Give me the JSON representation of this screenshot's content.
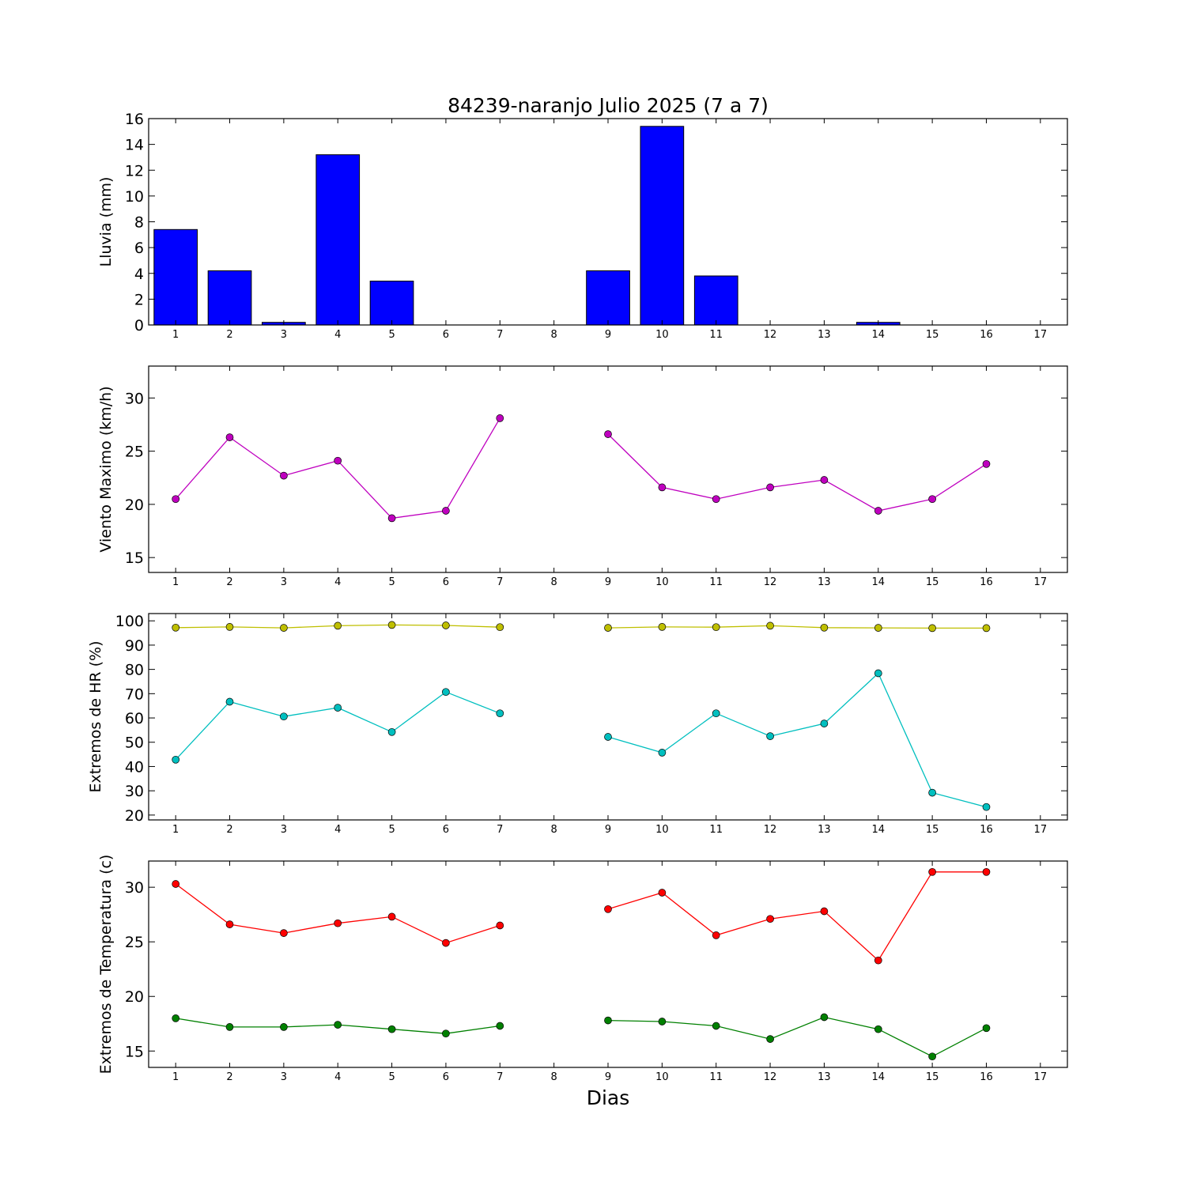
{
  "title": "84239-naranjo Julio 2025  (7 a 7)",
  "xlabel": "Dias",
  "chart_data": [
    {
      "type": "bar",
      "ylabel": "Lluvia (mm)",
      "xlim": [
        0.5,
        17.5
      ],
      "ylim": [
        0,
        16
      ],
      "yticks": [
        0,
        2,
        4,
        6,
        8,
        10,
        12,
        14,
        16
      ],
      "xticks": [
        1,
        2,
        3,
        4,
        5,
        6,
        7,
        8,
        9,
        10,
        11,
        12,
        13,
        14,
        15,
        16,
        17
      ],
      "series": [
        {
          "color": "#0000ff",
          "x": [
            1,
            2,
            3,
            4,
            5,
            6,
            7,
            9,
            10,
            11,
            12,
            13,
            14,
            15,
            16
          ],
          "values": [
            7.4,
            4.2,
            0.2,
            13.2,
            3.4,
            0,
            0,
            4.2,
            15.4,
            3.8,
            0,
            0,
            0.2,
            0,
            0
          ]
        }
      ]
    },
    {
      "type": "line",
      "ylabel": "Viento Maximo (km/h)",
      "xlim": [
        0.5,
        17.5
      ],
      "ylim": [
        13.6,
        33.0
      ],
      "yticks": [
        15,
        20,
        25,
        30
      ],
      "xticks": [
        1,
        2,
        3,
        4,
        5,
        6,
        7,
        8,
        9,
        10,
        11,
        12,
        13,
        14,
        15,
        16,
        17
      ],
      "series": [
        {
          "color": "#bf00bf",
          "x": [
            1,
            2,
            3,
            4,
            5,
            6,
            7,
            8,
            9,
            10,
            11,
            12,
            13,
            14,
            15,
            16
          ],
          "values": [
            20.5,
            26.3,
            22.7,
            24.1,
            18.7,
            19.4,
            28.1,
            null,
            26.6,
            21.6,
            20.5,
            21.6,
            22.3,
            19.4,
            20.5,
            23.8
          ]
        }
      ]
    },
    {
      "type": "line",
      "ylabel": "Extremos de HR (%)",
      "xlim": [
        0.5,
        17.5
      ],
      "ylim": [
        18,
        103
      ],
      "yticks": [
        20,
        30,
        40,
        50,
        60,
        70,
        80,
        90,
        100
      ],
      "xticks": [
        1,
        2,
        3,
        4,
        5,
        6,
        7,
        8,
        9,
        10,
        11,
        12,
        13,
        14,
        15,
        16,
        17
      ],
      "series": [
        {
          "color": "#bfbf00",
          "x": [
            1,
            2,
            3,
            4,
            5,
            6,
            7,
            8,
            9,
            10,
            11,
            12,
            13,
            14,
            15,
            16
          ],
          "values": [
            97.2,
            97.5,
            97.1,
            98.0,
            98.3,
            98.1,
            97.4,
            null,
            97.1,
            97.5,
            97.4,
            98.0,
            97.2,
            97.1,
            97.0,
            97.0
          ]
        },
        {
          "color": "#00bfbf",
          "x": [
            1,
            2,
            3,
            4,
            5,
            6,
            7,
            8,
            9,
            10,
            11,
            12,
            13,
            14,
            15,
            16
          ],
          "values": [
            42.8,
            66.7,
            60.6,
            64.2,
            54.2,
            70.7,
            61.9,
            null,
            52.2,
            45.7,
            61.9,
            52.5,
            57.7,
            78.4,
            29.2,
            23.3
          ]
        }
      ]
    },
    {
      "type": "line",
      "ylabel": "Extremos de Temperatura (c)",
      "xlim": [
        0.5,
        17.5
      ],
      "ylim": [
        13.5,
        32.4
      ],
      "yticks": [
        15,
        20,
        25,
        30
      ],
      "xticks": [
        1,
        2,
        3,
        4,
        5,
        6,
        7,
        8,
        9,
        10,
        11,
        12,
        13,
        14,
        15,
        16,
        17
      ],
      "series": [
        {
          "color": "#ff0000",
          "x": [
            1,
            2,
            3,
            4,
            5,
            6,
            7,
            8,
            9,
            10,
            11,
            12,
            13,
            14,
            15,
            16
          ],
          "values": [
            30.3,
            26.6,
            25.8,
            26.7,
            27.3,
            24.9,
            26.5,
            null,
            28.0,
            29.5,
            25.6,
            27.1,
            27.8,
            23.3,
            31.4,
            31.4
          ]
        },
        {
          "color": "#008000",
          "x": [
            1,
            2,
            3,
            4,
            5,
            6,
            7,
            8,
            9,
            10,
            11,
            12,
            13,
            14,
            15,
            16
          ],
          "values": [
            18.0,
            17.2,
            17.2,
            17.4,
            17.0,
            16.6,
            17.3,
            null,
            17.8,
            17.7,
            17.3,
            16.1,
            18.1,
            17.0,
            14.5,
            17.1
          ]
        }
      ]
    }
  ]
}
